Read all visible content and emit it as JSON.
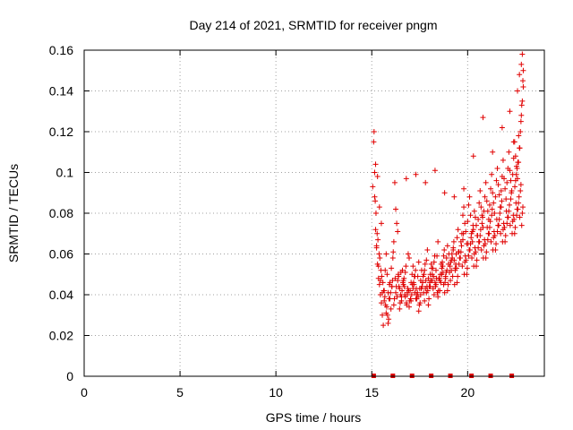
{
  "chart_data": {
    "type": "scatter",
    "title": "Day 214 of 2021, SRMTID for receiver pngm",
    "xlabel": "GPS time / hours",
    "ylabel": "SRMTID / TECUs",
    "xlim": [
      0,
      24
    ],
    "ylim": [
      0,
      0.16
    ],
    "xticks": [
      0,
      5,
      10,
      15,
      20
    ],
    "xtick_labels": [
      "0",
      "5",
      "10",
      "15",
      "20"
    ],
    "yticks": [
      0,
      0.02,
      0.04,
      0.06,
      0.08,
      0.1,
      0.12,
      0.14,
      0.16
    ],
    "ytick_labels": [
      "0",
      "0.02",
      "0.04",
      "0.06",
      "0.08",
      "0.1",
      "0.12",
      "0.14",
      "0.16"
    ],
    "grid": true,
    "marker": "+",
    "color": "#e00000",
    "zero_markers_x": [
      15.1,
      16.1,
      17.1,
      18.1,
      19.1,
      20.2,
      21.2,
      22.3
    ],
    "series": [
      {
        "name": "SRMTID",
        "x": [
          15.05,
          15.1,
          15.15,
          15.2,
          15.25,
          15.3,
          15.35,
          15.4,
          15.45,
          15.5,
          15.55,
          15.6,
          15.65,
          15.7,
          15.75,
          15.8,
          15.85,
          15.9,
          15.95,
          16.0,
          16.05,
          16.1,
          16.15,
          16.2,
          16.25,
          16.3,
          16.35,
          16.4,
          16.45,
          16.5,
          16.55,
          16.6,
          16.65,
          16.7,
          16.75,
          16.8,
          16.85,
          16.9,
          16.95,
          17.0,
          17.05,
          17.1,
          17.15,
          17.2,
          17.25,
          17.3,
          17.35,
          17.4,
          17.45,
          17.5,
          17.55,
          17.6,
          17.65,
          17.7,
          17.75,
          17.8,
          17.85,
          17.9,
          17.95,
          18.0,
          18.05,
          18.1,
          18.15,
          18.2,
          18.25,
          18.3,
          18.35,
          18.4,
          18.45,
          18.5,
          18.55,
          18.6,
          18.65,
          18.7,
          18.75,
          18.8,
          18.85,
          18.9,
          18.95,
          19.0,
          19.05,
          19.1,
          19.15,
          19.2,
          19.25,
          19.3,
          19.35,
          19.4,
          19.45,
          19.5,
          19.55,
          19.6,
          19.65,
          19.7,
          19.75,
          19.8,
          19.85,
          19.9,
          19.95,
          20.0,
          20.05,
          20.1,
          20.15,
          20.2,
          20.25,
          20.3,
          20.35,
          20.4,
          20.45,
          20.5,
          20.55,
          20.6,
          20.65,
          20.7,
          20.75,
          20.8,
          20.85,
          20.9,
          20.95,
          21.0,
          21.05,
          21.1,
          21.15,
          21.2,
          21.25,
          21.3,
          21.35,
          21.4,
          21.45,
          21.5,
          21.55,
          21.6,
          21.65,
          21.7,
          21.75,
          21.8,
          21.85,
          21.9,
          21.95,
          22.0,
          22.05,
          22.1,
          22.15,
          22.2,
          22.25,
          22.3,
          22.35,
          22.4,
          22.45,
          22.5,
          22.55,
          22.6,
          22.65,
          22.7,
          22.75,
          22.8,
          22.85,
          22.9,
          15.12,
          15.22,
          15.32,
          15.42,
          15.52,
          15.62,
          15.72,
          15.82,
          15.92,
          16.02,
          16.12,
          16.22,
          16.32,
          16.42,
          16.52,
          16.62,
          16.72,
          16.82,
          16.92,
          17.02,
          17.12,
          17.22,
          17.32,
          17.42,
          17.52,
          17.62,
          17.72,
          17.82,
          17.92,
          18.02,
          18.12,
          18.22,
          18.32,
          18.42,
          18.52,
          18.62,
          18.72,
          18.82,
          18.92,
          19.02,
          19.12,
          19.22,
          19.32,
          19.42,
          19.52,
          19.62,
          19.72,
          19.82,
          19.92,
          20.02,
          20.12,
          20.22,
          20.32,
          20.42,
          20.52,
          20.62,
          20.72,
          20.82,
          20.92,
          21.02,
          21.12,
          21.22,
          21.32,
          21.42,
          21.52,
          21.62,
          21.72,
          21.82,
          21.92,
          22.02,
          22.12,
          22.22,
          22.32,
          22.42,
          22.52,
          22.62,
          22.72,
          22.82,
          15.18,
          15.28,
          15.38,
          15.48,
          15.58,
          15.68,
          15.78,
          15.88,
          15.98,
          16.08,
          16.18,
          16.28,
          16.38,
          16.48,
          16.58,
          16.68,
          16.78,
          16.88,
          16.98,
          17.08,
          17.18,
          17.28,
          17.38,
          17.48,
          17.58,
          17.68,
          17.78,
          17.88,
          17.98,
          18.08,
          18.18,
          18.28,
          18.38,
          18.48,
          18.58,
          18.68,
          18.78,
          18.88,
          18.98,
          19.08,
          19.18,
          19.28,
          19.38,
          19.48,
          19.58,
          19.68,
          19.78,
          19.88,
          19.98,
          20.08,
          20.18,
          20.28,
          20.38,
          20.48,
          20.58,
          20.68,
          20.78,
          20.88,
          20.98,
          21.08,
          21.18,
          21.28,
          21.38,
          21.48,
          21.58,
          21.68,
          21.78,
          21.88,
          21.98,
          22.08,
          22.18,
          22.28,
          22.38,
          22.48,
          22.58,
          22.68,
          22.78,
          22.88,
          15.15,
          15.25,
          15.35,
          15.45,
          15.55,
          15.65,
          15.75,
          15.85,
          15.95,
          16.05,
          16.15,
          16.25,
          16.35,
          16.45,
          16.55,
          16.65,
          16.75,
          16.85,
          16.95,
          17.05,
          17.15,
          17.25,
          17.35,
          17.45,
          17.55,
          17.65,
          17.75,
          17.85,
          17.95,
          18.05,
          18.15,
          18.25,
          18.35,
          18.45,
          18.55,
          18.65,
          18.75,
          18.85,
          18.95,
          19.05,
          19.15,
          19.25,
          19.35,
          19.45,
          19.55,
          19.65,
          19.75,
          19.85,
          19.95,
          20.05,
          20.15,
          20.25,
          20.35,
          20.45,
          20.55,
          20.65,
          20.75,
          20.85,
          20.95,
          21.05,
          21.15,
          21.25,
          21.35,
          21.45,
          21.55,
          21.65,
          21.75,
          21.85,
          21.95,
          22.05,
          22.15,
          22.25,
          22.35,
          22.45,
          22.55,
          22.65,
          22.75,
          22.85,
          15.2,
          15.3,
          15.4,
          15.5,
          16.8,
          17.3,
          17.8,
          18.3,
          18.8,
          19.3,
          19.8,
          20.3,
          20.8,
          21.3,
          21.8,
          22.2,
          22.4,
          22.6,
          22.7,
          22.8,
          22.85,
          22.9,
          22.88,
          22.82,
          22.78,
          22.72,
          22.66,
          22.62,
          22.58,
          22.54,
          22.5,
          22.46
        ],
        "y": [
          0.093,
          0.115,
          0.088,
          0.072,
          0.064,
          0.055,
          0.048,
          0.045,
          0.04,
          0.036,
          0.03,
          0.025,
          0.042,
          0.052,
          0.06,
          0.05,
          0.041,
          0.038,
          0.046,
          0.033,
          0.044,
          0.058,
          0.066,
          0.095,
          0.082,
          0.075,
          0.071,
          0.049,
          0.043,
          0.04,
          0.037,
          0.052,
          0.047,
          0.044,
          0.039,
          0.036,
          0.041,
          0.06,
          0.058,
          0.042,
          0.046,
          0.05,
          0.054,
          0.045,
          0.041,
          0.038,
          0.04,
          0.049,
          0.056,
          0.043,
          0.047,
          0.052,
          0.046,
          0.041,
          0.037,
          0.043,
          0.057,
          0.062,
          0.048,
          0.044,
          0.05,
          0.055,
          0.047,
          0.043,
          0.04,
          0.046,
          0.052,
          0.059,
          0.066,
          0.048,
          0.042,
          0.046,
          0.05,
          0.054,
          0.045,
          0.041,
          0.049,
          0.058,
          0.064,
          0.055,
          0.051,
          0.047,
          0.052,
          0.058,
          0.062,
          0.057,
          0.053,
          0.06,
          0.068,
          0.072,
          0.061,
          0.058,
          0.066,
          0.07,
          0.079,
          0.083,
          0.075,
          0.071,
          0.065,
          0.076,
          0.084,
          0.088,
          0.079,
          0.07,
          0.066,
          0.072,
          0.081,
          0.078,
          0.074,
          0.069,
          0.077,
          0.085,
          0.091,
          0.083,
          0.079,
          0.073,
          0.081,
          0.088,
          0.095,
          0.086,
          0.081,
          0.077,
          0.084,
          0.092,
          0.099,
          0.09,
          0.085,
          0.08,
          0.088,
          0.096,
          0.102,
          0.094,
          0.089,
          0.083,
          0.091,
          0.098,
          0.106,
          0.097,
          0.092,
          0.087,
          0.095,
          0.102,
          0.11,
          0.101,
          0.096,
          0.091,
          0.099,
          0.107,
          0.115,
          0.108,
          0.103,
          0.097,
          0.105,
          0.112,
          0.12,
          0.128,
          0.135,
          0.142,
          0.12,
          0.08,
          0.067,
          0.058,
          0.049,
          0.042,
          0.035,
          0.03,
          0.045,
          0.053,
          0.061,
          0.048,
          0.039,
          0.044,
          0.051,
          0.046,
          0.04,
          0.035,
          0.042,
          0.038,
          0.045,
          0.049,
          0.043,
          0.039,
          0.036,
          0.044,
          0.05,
          0.047,
          0.042,
          0.046,
          0.053,
          0.049,
          0.044,
          0.041,
          0.048,
          0.055,
          0.051,
          0.046,
          0.052,
          0.06,
          0.056,
          0.049,
          0.045,
          0.053,
          0.061,
          0.058,
          0.054,
          0.05,
          0.057,
          0.065,
          0.062,
          0.058,
          0.054,
          0.061,
          0.069,
          0.066,
          0.062,
          0.058,
          0.065,
          0.073,
          0.07,
          0.066,
          0.062,
          0.069,
          0.077,
          0.074,
          0.07,
          0.066,
          0.073,
          0.081,
          0.078,
          0.074,
          0.07,
          0.077,
          0.085,
          0.082,
          0.078,
          0.074,
          0.086,
          0.07,
          0.06,
          0.052,
          0.046,
          0.039,
          0.034,
          0.028,
          0.041,
          0.047,
          0.038,
          0.044,
          0.05,
          0.036,
          0.042,
          0.048,
          0.054,
          0.043,
          0.037,
          0.04,
          0.046,
          0.052,
          0.041,
          0.035,
          0.043,
          0.049,
          0.055,
          0.044,
          0.038,
          0.047,
          0.053,
          0.059,
          0.048,
          0.042,
          0.05,
          0.056,
          0.062,
          0.051,
          0.045,
          0.054,
          0.06,
          0.066,
          0.055,
          0.049,
          0.058,
          0.064,
          0.07,
          0.059,
          0.053,
          0.062,
          0.068,
          0.074,
          0.063,
          0.057,
          0.066,
          0.072,
          0.078,
          0.067,
          0.061,
          0.07,
          0.076,
          0.082,
          0.071,
          0.065,
          0.074,
          0.08,
          0.086,
          0.075,
          0.069,
          0.078,
          0.084,
          0.09,
          0.079,
          0.073,
          0.082,
          0.088,
          0.094,
          0.083,
          0.1,
          0.063,
          0.054,
          0.047,
          0.041,
          0.037,
          0.031,
          0.026,
          0.038,
          0.044,
          0.035,
          0.041,
          0.047,
          0.033,
          0.039,
          0.045,
          0.051,
          0.04,
          0.034,
          0.037,
          0.043,
          0.049,
          0.038,
          0.032,
          0.04,
          0.046,
          0.052,
          0.041,
          0.035,
          0.044,
          0.05,
          0.056,
          0.045,
          0.039,
          0.047,
          0.053,
          0.059,
          0.048,
          0.042,
          0.051,
          0.057,
          0.063,
          0.052,
          0.046,
          0.055,
          0.061,
          0.067,
          0.056,
          0.05,
          0.059,
          0.065,
          0.071,
          0.06,
          0.054,
          0.063,
          0.069,
          0.075,
          0.064,
          0.058,
          0.067,
          0.073,
          0.079,
          0.068,
          0.062,
          0.071,
          0.077,
          0.083,
          0.072,
          0.066,
          0.075,
          0.081,
          0.087,
          0.076,
          0.07,
          0.079,
          0.085,
          0.091,
          0.08,
          0.104,
          0.098,
          0.083,
          0.075,
          0.097,
          0.099,
          0.095,
          0.101,
          0.09,
          0.088,
          0.092,
          0.108,
          0.127,
          0.11,
          0.122,
          0.13,
          0.115,
          0.14,
          0.148,
          0.153,
          0.158,
          0.15,
          0.145,
          0.133,
          0.125,
          0.112,
          0.118,
          0.105,
          0.102,
          0.099,
          0.096,
          0.093
        ]
      }
    ]
  }
}
